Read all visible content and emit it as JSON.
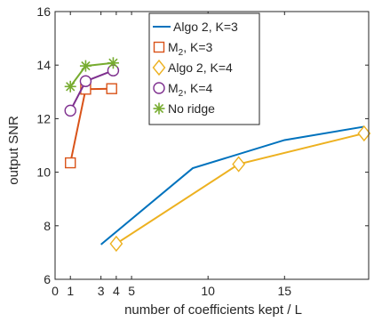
{
  "chart_data": {
    "type": "line",
    "xlabel": "number of coefficients kept / L",
    "ylabel": "output SNR",
    "xlim": [
      0,
      20.5
    ],
    "ylim": [
      6,
      16
    ],
    "x_ticks": [
      0,
      1,
      3,
      4,
      5,
      10,
      15
    ],
    "y_ticks": [
      6,
      8,
      10,
      12,
      14,
      16
    ],
    "grid": false,
    "legend_position": "top-center",
    "series": [
      {
        "name": "Algo 2, K=3",
        "color": "#0072BD",
        "marker": "none",
        "x": [
          3,
          9,
          15,
          20.2
        ],
        "y": [
          7.3,
          10.15,
          11.2,
          11.7
        ]
      },
      {
        "name": "M",
        "sub": "2",
        "suffix": ", K=3",
        "color": "#D95319",
        "marker": "square",
        "x": [
          1,
          2,
          3.7
        ],
        "y": [
          10.35,
          13.1,
          13.12
        ]
      },
      {
        "name": "Algo 2, K=4",
        "color": "#EDB120",
        "marker": "diamond",
        "x": [
          4,
          12,
          20.2
        ],
        "y": [
          7.33,
          10.3,
          11.45
        ]
      },
      {
        "name": "M",
        "sub": "2",
        "suffix": ", K=4",
        "color": "#7E2F8E",
        "marker": "circle",
        "x": [
          1,
          2,
          3.8
        ],
        "y": [
          12.3,
          13.4,
          13.8
        ]
      },
      {
        "name": "No ridge",
        "color": "#77AC30",
        "marker": "asterisk",
        "x": [
          1,
          2,
          3.8
        ],
        "y": [
          13.2,
          13.97,
          14.08
        ]
      }
    ]
  }
}
